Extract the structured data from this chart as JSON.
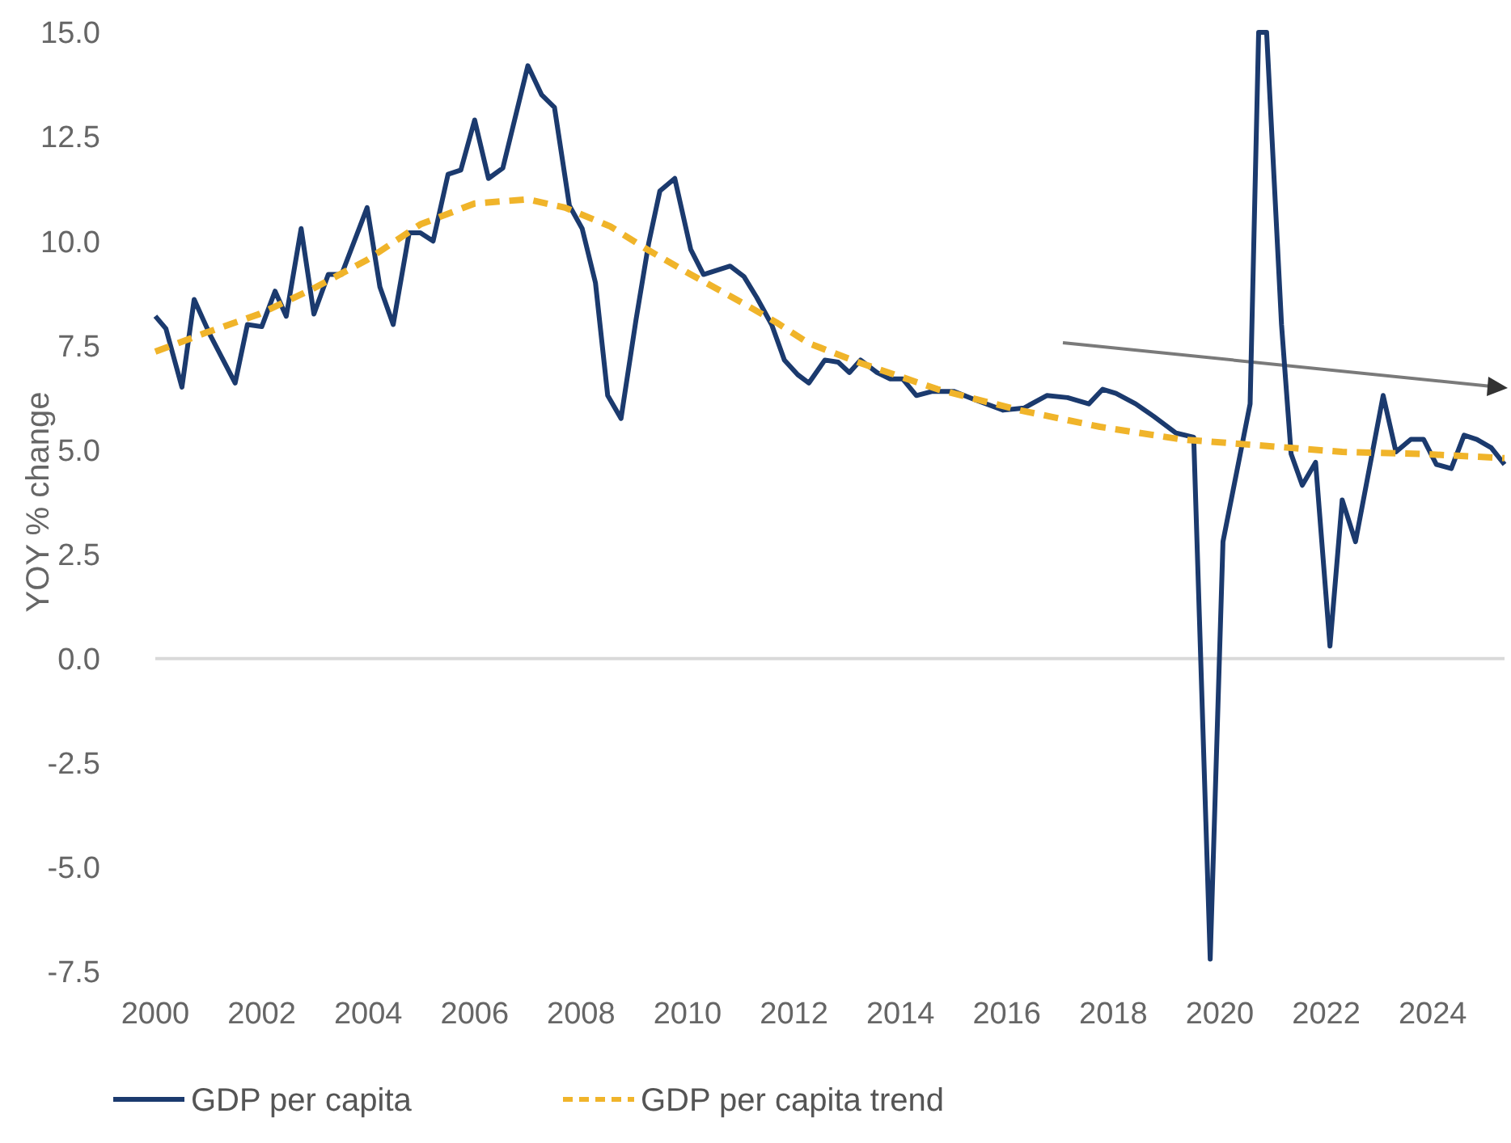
{
  "chart_data": {
    "type": "line",
    "ylabel": "YOY % change",
    "xlim": [
      2000,
      2025.35
    ],
    "xticks": [
      2000,
      2002,
      2004,
      2006,
      2008,
      2010,
      2012,
      2014,
      2016,
      2018,
      2020,
      2022,
      2024
    ],
    "ylim": [
      -7.5,
      15
    ],
    "yticks": [
      {
        "value": 15,
        "label": "15.0"
      },
      12.5,
      {
        "value": 10,
        "label": "10.0"
      },
      7.5,
      {
        "value": 5,
        "label": "5.0"
      },
      2.5,
      {
        "value": 0,
        "label": "0.0"
      },
      -2.5,
      {
        "value": -5,
        "label": "-5.0"
      },
      -7.5
    ],
    "grid": false,
    "legend": "bottom",
    "marker": "none",
    "ref_lines": [
      {
        "axis": "y",
        "value": 0,
        "color": "#d9d9d9"
      }
    ],
    "series": [
      {
        "name": "GDP per capita",
        "color": "#1b3a6e",
        "line_style": "solid",
        "x": [
          2000.0,
          2000.2,
          2000.5,
          2000.73,
          2001.03,
          2001.5,
          2001.73,
          2002.0,
          2002.25,
          2002.46,
          2002.74,
          2002.98,
          2003.25,
          2003.5,
          2003.98,
          2004.22,
          2004.47,
          2004.77,
          2004.98,
          2005.22,
          2005.5,
          2005.74,
          2006.0,
          2006.26,
          2006.53,
          2007.0,
          2007.26,
          2007.5,
          2007.78,
          2008.02,
          2008.27,
          2008.5,
          2008.75,
          2009.03,
          2009.27,
          2009.48,
          2009.76,
          2010.06,
          2010.3,
          2010.55,
          2010.8,
          2011.06,
          2011.3,
          2011.58,
          2011.82,
          2012.07,
          2012.28,
          2012.58,
          2012.83,
          2013.04,
          2013.25,
          2013.56,
          2013.8,
          2014.04,
          2014.3,
          2014.6,
          2015.0,
          2015.4,
          2015.93,
          2016.32,
          2016.75,
          2017.14,
          2017.54,
          2017.8,
          2018.05,
          2018.42,
          2018.76,
          2019.18,
          2019.51,
          2019.82,
          2020.06,
          2020.57,
          2020.73,
          2020.88,
          2021.16,
          2021.34,
          2021.55,
          2021.8,
          2022.07,
          2022.3,
          2022.55,
          2023.07,
          2023.31,
          2023.59,
          2023.83,
          2024.07,
          2024.35,
          2024.59,
          2024.83,
          2025.1,
          2025.35
        ],
        "values": [
          8.2,
          7.9,
          6.5,
          8.6,
          7.75,
          6.6,
          8.0,
          7.95,
          8.8,
          8.2,
          10.3,
          8.25,
          9.2,
          9.2,
          10.8,
          8.9,
          8.0,
          10.2,
          10.2,
          10.0,
          11.6,
          11.7,
          12.9,
          11.5,
          11.75,
          14.2,
          13.5,
          13.2,
          10.85,
          10.3,
          9.0,
          6.3,
          5.75,
          8.1,
          9.95,
          11.2,
          11.5,
          9.8,
          9.2,
          9.3,
          9.4,
          9.15,
          8.65,
          8.0,
          7.15,
          6.8,
          6.6,
          7.15,
          7.1,
          6.85,
          7.15,
          6.85,
          6.7,
          6.7,
          6.3,
          6.4,
          6.4,
          6.2,
          5.95,
          6.0,
          6.3,
          6.25,
          6.1,
          6.45,
          6.35,
          6.1,
          5.8,
          5.4,
          5.3,
          -7.2,
          2.8,
          6.1,
          15.0,
          15.0,
          8.0,
          4.9,
          4.15,
          4.7,
          0.3,
          3.8,
          2.8,
          6.3,
          4.95,
          5.25,
          5.25,
          4.65,
          4.55,
          5.35,
          5.25,
          5.05,
          4.65
        ]
      },
      {
        "name": "GDP per capita trend",
        "color": "#f0b42a",
        "line_style": "dashed",
        "x": [
          2000.0,
          2000.94,
          2001.95,
          2002.95,
          2003.98,
          2004.98,
          2006.0,
          2007.0,
          2007.7,
          2008.55,
          2009.24,
          2010.06,
          2011.06,
          2011.67,
          2012.28,
          2013.2,
          2014.7,
          2016.23,
          2017.75,
          2019.27,
          2020.8,
          2022.3,
          2023.83,
          2025.35
        ],
        "values": [
          7.35,
          7.8,
          8.25,
          8.85,
          9.55,
          10.4,
          10.9,
          11.0,
          10.8,
          10.35,
          9.8,
          9.2,
          8.5,
          8.05,
          7.55,
          7.1,
          6.45,
          5.95,
          5.55,
          5.25,
          5.1,
          4.95,
          4.9,
          4.8
        ]
      }
    ]
  }
}
